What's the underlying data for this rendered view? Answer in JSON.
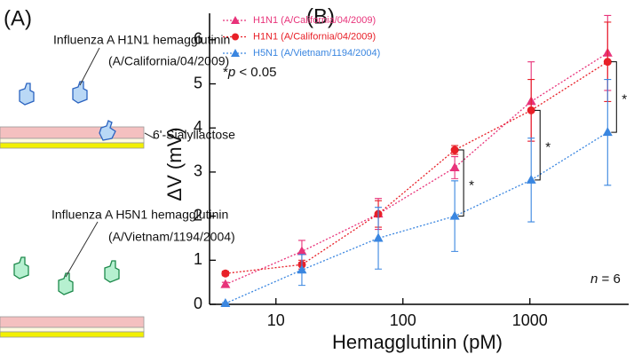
{
  "panel_a": {
    "label": "(A)",
    "h1n1_name": "Influenza A H1N1 hemagglutinin",
    "h1n1_strain": "(A/California/04/2009)",
    "receptor": "6'-Sialyllactose",
    "h5n1_name": "Influenza A H5N1 hemagglutinin",
    "h5n1_strain": "(A/Vietnam/1194/2004)"
  },
  "chart_data": {
    "type": "line",
    "panel_label": "(B)",
    "x_label": "Hemagglutinin (pM)",
    "y_label": "ΔV (mV)",
    "xscale": "log",
    "x": [
      4,
      16,
      64,
      256,
      1024,
      4096
    ],
    "series": [
      {
        "name": "H1N1 (A/California/04/2009)",
        "color": "#e8337a",
        "marker": "triangle",
        "values": [
          0.45,
          1.2,
          2.05,
          3.1,
          4.6,
          5.7
        ],
        "errors": [
          0.05,
          0.25,
          0.35,
          0.25,
          0.9,
          0.85
        ]
      },
      {
        "name": "H1N1 (A/California/04/2009)",
        "color": "#e82028",
        "marker": "circle",
        "values": [
          0.7,
          0.9,
          2.05,
          3.5,
          4.4,
          5.5
        ],
        "errors": [
          0.05,
          0.1,
          0.3,
          0.1,
          0.7,
          0.9
        ]
      },
      {
        "name": "H5N1 (A/Vietnam/1194/2004)",
        "color": "#3a86e0",
        "marker": "triangle",
        "values": [
          0.02,
          0.78,
          1.5,
          2.0,
          2.82,
          3.9
        ],
        "errors": [
          0.02,
          0.35,
          0.7,
          0.8,
          0.95,
          1.2
        ]
      }
    ],
    "brackets": [
      {
        "at": 256,
        "label": "*"
      },
      {
        "at": 1024,
        "label": "*"
      },
      {
        "at": 4096,
        "label": "*"
      }
    ],
    "significance_note": {
      "star": "*",
      "p": "p",
      "rest": "< 0.05"
    },
    "n_note": {
      "n": "n",
      "rest": "= 6"
    },
    "xlim": [
      3,
      6000
    ],
    "xticks": [
      10,
      100,
      1000
    ],
    "ylim": [
      0,
      6.6
    ],
    "yticks": [
      0,
      1,
      2,
      3,
      4,
      5,
      6
    ]
  }
}
